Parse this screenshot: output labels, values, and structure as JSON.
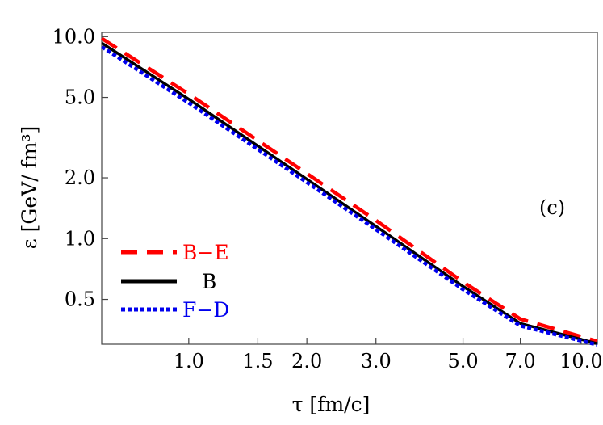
{
  "chart_data": {
    "type": "line",
    "title": "",
    "xlabel": "τ [fm/c]",
    "ylabel": "ε  [GeV/ fm³]",
    "x_scale": "log",
    "y_scale": "log",
    "xlim": [
      0.6,
      11.0
    ],
    "ylim": [
      0.3,
      10.5
    ],
    "x_ticks": [
      {
        "value": 1.0,
        "label": "1.0"
      },
      {
        "value": 1.5,
        "label": "1.5"
      },
      {
        "value": 2.0,
        "label": "2.0"
      },
      {
        "value": 3.0,
        "label": "3.0"
      },
      {
        "value": 5.0,
        "label": "5.0"
      },
      {
        "value": 7.0,
        "label": "7.0"
      },
      {
        "value": 10.0,
        "label": "10.0"
      }
    ],
    "y_ticks": [
      {
        "value": 0.5,
        "label": "0.5"
      },
      {
        "value": 1.0,
        "label": "1.0"
      },
      {
        "value": 2.0,
        "label": "2.0"
      },
      {
        "value": 5.0,
        "label": "5.0"
      },
      {
        "value": 10.0,
        "label": "10.0"
      }
    ],
    "series": [
      {
        "name": "B−E",
        "color": "#ff0000",
        "style": "dashed",
        "x": [
          0.6,
          1.0,
          2.0,
          3.0,
          5.0,
          7.0,
          11.0
        ],
        "y": [
          9.8,
          5.2,
          2.1,
          1.23,
          0.61,
          0.4,
          0.31
        ]
      },
      {
        "name": "B",
        "color": "#000000",
        "style": "solid",
        "x": [
          0.6,
          1.0,
          2.0,
          3.0,
          5.0,
          7.0,
          11.0
        ],
        "y": [
          9.3,
          4.9,
          1.97,
          1.15,
          0.58,
          0.38,
          0.302
        ]
      },
      {
        "name": "F−D",
        "color": "#0000ee",
        "style": "dotted",
        "x": [
          0.6,
          1.0,
          2.0,
          3.0,
          5.0,
          7.0,
          11.0
        ],
        "y": [
          8.9,
          4.7,
          1.9,
          1.11,
          0.56,
          0.37,
          0.298
        ]
      }
    ],
    "legend": {
      "placement": "bottom-left"
    },
    "annotations": [
      "(c)"
    ],
    "grid": false
  }
}
